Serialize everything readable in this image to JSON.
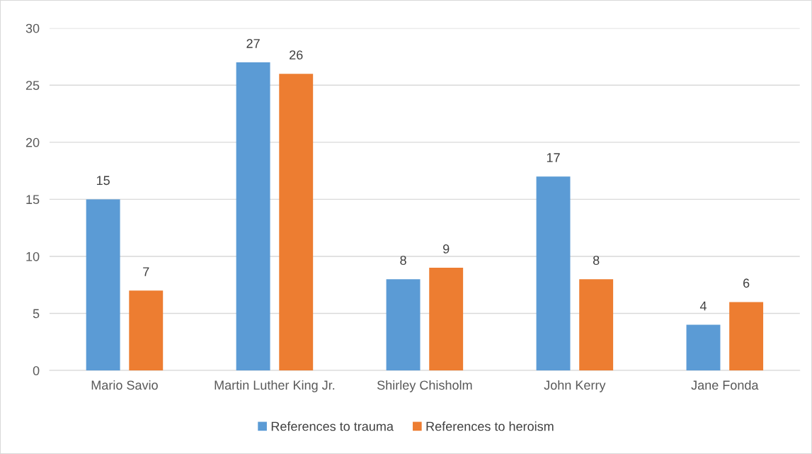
{
  "chart_data": {
    "type": "bar",
    "categories": [
      "Mario Savio",
      "Martin Luther King Jr.",
      "Shirley Chisholm",
      "John Kerry",
      "Jane Fonda"
    ],
    "series": [
      {
        "name": "References to trauma",
        "color": "#5b9bd5",
        "values": [
          15,
          27,
          8,
          17,
          4
        ]
      },
      {
        "name": "References to heroism",
        "color": "#ed7d31",
        "values": [
          7,
          26,
          9,
          8,
          6
        ]
      }
    ],
    "ylim": [
      0,
      30
    ],
    "yticks": [
      0,
      5,
      10,
      15,
      20,
      25,
      30
    ],
    "grid": "y",
    "legend": "bottom",
    "data_labels": true
  }
}
